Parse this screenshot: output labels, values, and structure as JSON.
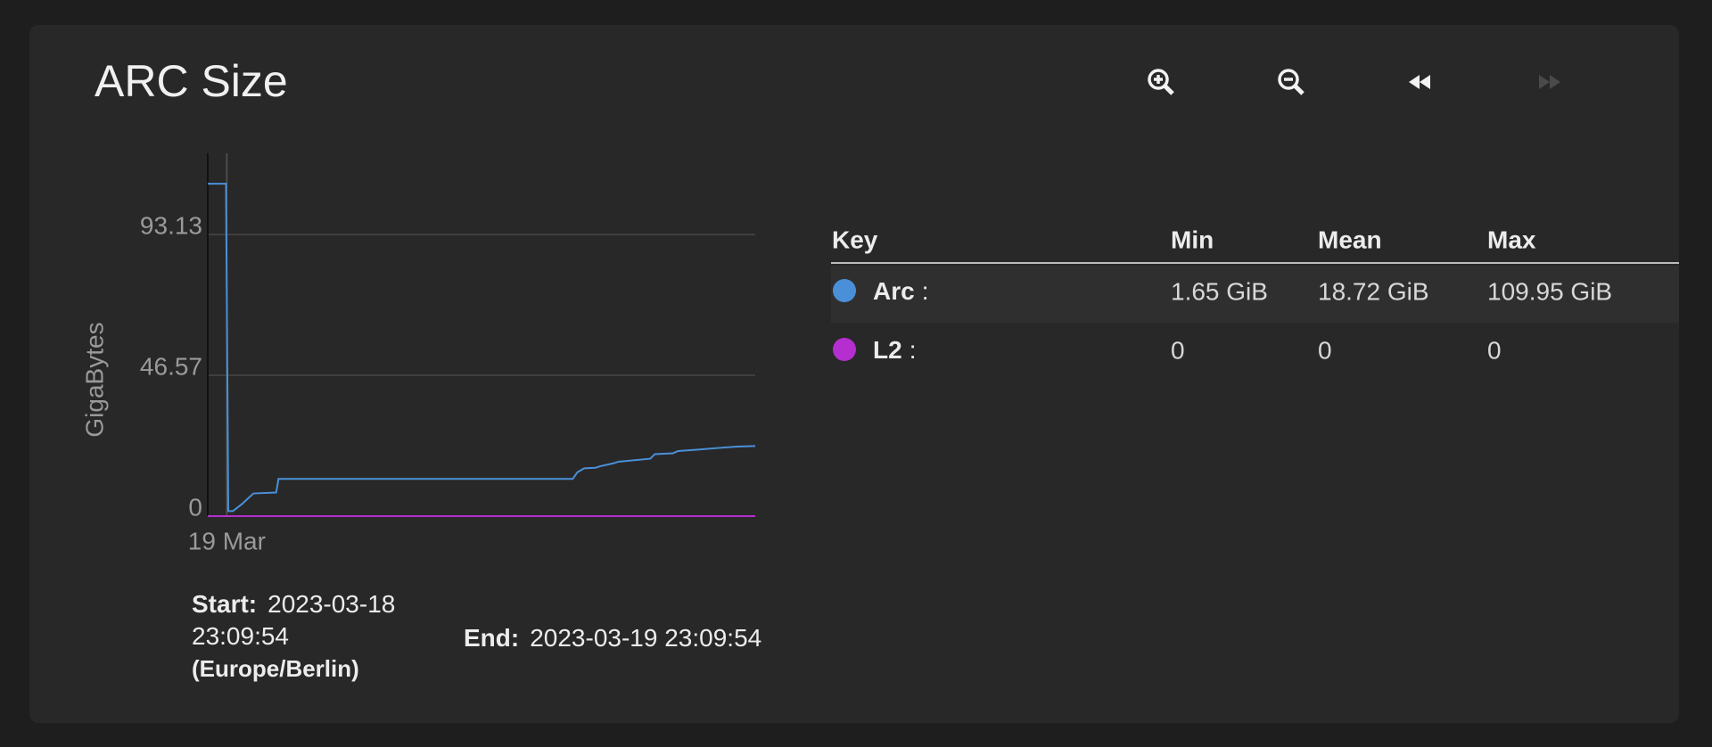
{
  "card": {
    "title": "ARC Size"
  },
  "chart_data": {
    "type": "line",
    "ylabel": "GigaBytes",
    "x": [
      0,
      0.8,
      0.9,
      1.1,
      1.5,
      2.0,
      3.0,
      3.1,
      16.0,
      16.2,
      16.5,
      17.0,
      17.2,
      17.8,
      18.0,
      19.4,
      19.6,
      20.4,
      20.6,
      21.5,
      22.3,
      23.2,
      24
    ],
    "xlim": [
      0,
      24
    ],
    "xticks": [
      {
        "value": 0.835,
        "label": "19 Mar"
      }
    ],
    "ylim": [
      0,
      120
    ],
    "yticks": [
      0,
      46.57,
      93.13
    ],
    "grid": true,
    "series": [
      {
        "name": "Arc",
        "color": "#4a90d9",
        "values": [
          109.95,
          109.95,
          1.65,
          1.65,
          4,
          7.5,
          7.8,
          12.3,
          12.3,
          14.5,
          15.8,
          16.0,
          16.5,
          17.5,
          18.0,
          19.0,
          20.5,
          20.8,
          21.5,
          22.0,
          22.5,
          23.0,
          23.2
        ]
      },
      {
        "name": "L2",
        "color": "#b52ecf",
        "values": [
          0,
          0,
          0,
          0,
          0,
          0,
          0,
          0,
          0,
          0,
          0,
          0,
          0,
          0,
          0,
          0,
          0,
          0,
          0,
          0,
          0,
          0,
          0
        ]
      }
    ]
  },
  "legend": {
    "headers": [
      "Key",
      "Min",
      "Mean",
      "Max"
    ],
    "separator": ":",
    "rows": [
      [
        "1.65 GiB",
        "18.72 GiB",
        "109.95 GiB"
      ],
      [
        "0",
        "0",
        "0"
      ]
    ]
  },
  "range": {
    "start_label": "Start:",
    "start": "2023-03-18 23:09:54",
    "timezone": "(Europe/Berlin)",
    "end_label": "End:",
    "end": "2023-03-19 23:09:54"
  }
}
